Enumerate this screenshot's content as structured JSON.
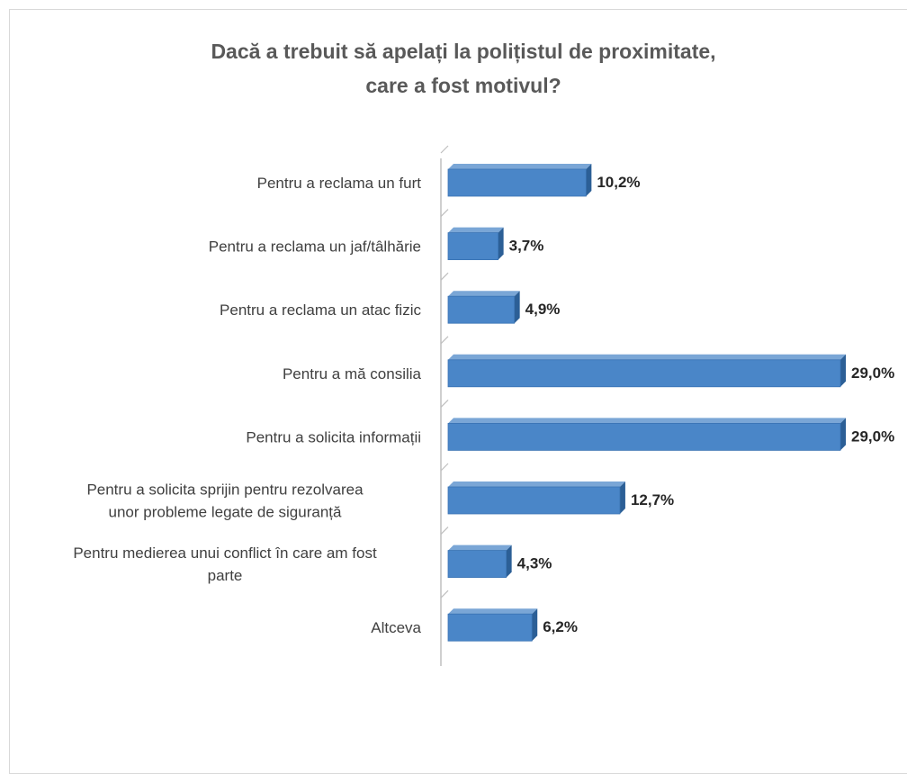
{
  "chart_data": {
    "type": "bar",
    "orientation": "horizontal",
    "title": "Dacă a trebuit să apelați la polițistul de proximitate,\ncare a fost motivul?",
    "xlabel": "",
    "ylabel": "",
    "categories": [
      [
        "Pentru a reclama un furt"
      ],
      [
        "Pentru a reclama un jaf/tâlhărie"
      ],
      [
        "Pentru a reclama un atac fizic"
      ],
      [
        "Pentru a mă consilia"
      ],
      [
        "Pentru a solicita informații"
      ],
      [
        "Pentru a solicita sprijin pentru rezolvarea",
        "unor probleme legate de siguranță"
      ],
      [
        "Pentru medierea unui conflict în care am fost",
        "parte"
      ],
      [
        "Altceva"
      ]
    ],
    "values": [
      10.2,
      3.7,
      4.9,
      29.0,
      29.0,
      12.7,
      4.3,
      6.2
    ],
    "value_labels": [
      "10,2%",
      "3,7%",
      "4,9%",
      "29,0%",
      "29,0%",
      "12,7%",
      "4,3%",
      "6,2%"
    ],
    "unit": "%",
    "xlim": [
      0,
      29
    ],
    "grid": false,
    "legend": "none",
    "colors": {
      "bar_front": "#4a86c8",
      "bar_top": "#7aa6d6",
      "bar_side": "#2c5f96",
      "label_text": "#404040",
      "value_text": "#262626",
      "axis": "#bfbfbf"
    }
  }
}
